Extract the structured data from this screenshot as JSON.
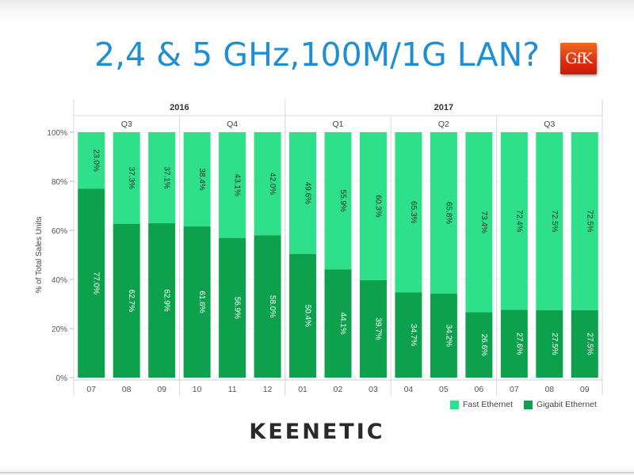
{
  "slide_title": "2,4 & 5 GHz,100M/1G LAN?",
  "gfk_logo_text": "GfK",
  "brand_logo": "KEENETIC",
  "colors": {
    "fast": "#2ee08a",
    "gigabit": "#0ea14d",
    "title": "#1f8fd4"
  },
  "chart_data": {
    "type": "bar",
    "stacked": true,
    "ylabel": "% of Total Sales Units",
    "ylim": [
      0,
      100
    ],
    "yticks": [
      "0%",
      "20%",
      "40%",
      "60%",
      "80%",
      "100%"
    ],
    "years": [
      {
        "label": "2016",
        "span": [
          0,
          5
        ]
      },
      {
        "label": "2017",
        "span": [
          6,
          14
        ]
      }
    ],
    "quarters": [
      {
        "label": "Q3",
        "span": [
          0,
          2
        ]
      },
      {
        "label": "Q4",
        "span": [
          3,
          5
        ]
      },
      {
        "label": "Q1",
        "span": [
          6,
          8
        ]
      },
      {
        "label": "Q2",
        "span": [
          9,
          11
        ]
      },
      {
        "label": "Q3",
        "span": [
          12,
          14
        ]
      }
    ],
    "categories": [
      "07",
      "08",
      "09",
      "10",
      "11",
      "12",
      "01",
      "02",
      "03",
      "04",
      "05",
      "06",
      "07",
      "08",
      "09"
    ],
    "series": [
      {
        "name": "Gigabit Ethernet",
        "values": [
          77.0,
          62.7,
          62.9,
          61.6,
          56.9,
          58.0,
          50.4,
          44.1,
          39.7,
          34.7,
          34.2,
          26.6,
          27.6,
          27.5,
          27.5
        ],
        "labels": [
          "77.0%",
          "62.7%",
          "62.9%",
          "61.6%",
          "56.9%",
          "58.0%",
          "50.4%",
          "44.1%",
          "39.7%",
          "34.7%",
          "34.2%",
          "26.6%",
          "27.6%",
          "27.5%",
          "27.5%"
        ]
      },
      {
        "name": "Fast Ethernet",
        "values": [
          23.0,
          37.3,
          37.1,
          38.4,
          43.1,
          42.0,
          49.6,
          55.9,
          60.3,
          65.3,
          65.8,
          73.4,
          72.4,
          72.5,
          72.5
        ],
        "labels": [
          "23.0%",
          "37.3%",
          "37.1%",
          "38.4%",
          "43.1%",
          "42.0%",
          "49.6%",
          "55.9%",
          "60.3%",
          "65.3%",
          "65.8%",
          "73.4%",
          "72.4%",
          "72.5%",
          "72.5%"
        ]
      }
    ],
    "legend": [
      {
        "name": "Fast Ethernet"
      },
      {
        "name": "Gigabit Ethernet"
      }
    ],
    "legend_position": "bottom-right",
    "grid": true
  }
}
